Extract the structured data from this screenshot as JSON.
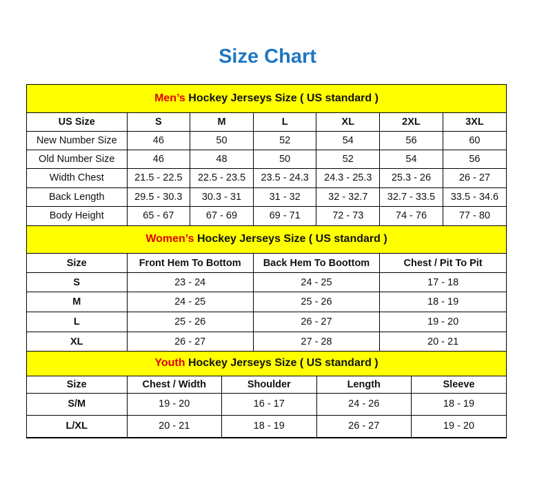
{
  "title": "Size Chart",
  "colors": {
    "title": "#1f77c4",
    "section_bg": "#ffff00",
    "section_accent": "#e00000"
  },
  "mens": {
    "heading_accent": "Men’s",
    "heading_rest": " Hockey Jerseys Size ( US standard )",
    "columns": [
      "US Size",
      "S",
      "M",
      "L",
      "XL",
      "2XL",
      "3XL"
    ],
    "rows": [
      [
        "New Number Size",
        "46",
        "50",
        "52",
        "54",
        "56",
        "60"
      ],
      [
        "Old Number Size",
        "46",
        "48",
        "50",
        "52",
        "54",
        "56"
      ],
      [
        "Width Chest",
        "21.5 - 22.5",
        "22.5 - 23.5",
        "23.5 - 24.3",
        "24.3 - 25.3",
        "25.3 - 26",
        "26 - 27"
      ],
      [
        "Back Length",
        "29.5 - 30.3",
        "30.3 - 31",
        "31 - 32",
        "32 - 32.7",
        "32.7 - 33.5",
        "33.5 - 34.6"
      ],
      [
        "Body Height",
        "65 - 67",
        "67 - 69",
        "69 - 71",
        "72 - 73",
        "74 - 76",
        "77 - 80"
      ]
    ]
  },
  "womens": {
    "heading_accent": "Women’s",
    "heading_rest": " Hockey Jerseys Size ( US standard )",
    "columns": [
      "Size",
      "Front Hem To Bottom",
      "Back Hem To Boottom",
      "Chest / Pit To Pit"
    ],
    "rows": [
      [
        "S",
        "23 - 24",
        "24 - 25",
        "17 - 18"
      ],
      [
        "M",
        "24 - 25",
        "25 - 26",
        "18 - 19"
      ],
      [
        "L",
        "25 - 26",
        "26 - 27",
        "19 - 20"
      ],
      [
        "XL",
        "26 - 27",
        "27 - 28",
        "20 - 21"
      ]
    ]
  },
  "youth": {
    "heading_accent": "Youth",
    "heading_rest": " Hockey Jerseys Size ( US standard )",
    "columns": [
      "Size",
      "Chest / Width",
      "Shoulder",
      "Length",
      "Sleeve"
    ],
    "rows": [
      [
        "S/M",
        "19 - 20",
        "16 - 17",
        "24 - 26",
        "18 - 19"
      ],
      [
        "L/XL",
        "20 - 21",
        "18 - 19",
        "26 - 27",
        "19 - 20"
      ]
    ]
  }
}
